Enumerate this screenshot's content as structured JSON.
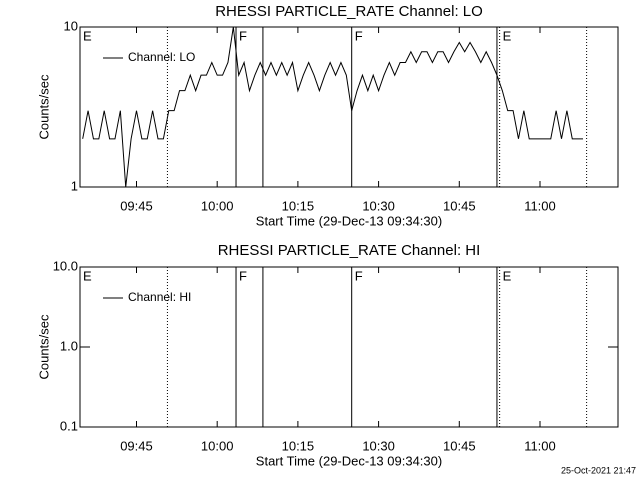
{
  "chart_data": [
    {
      "type": "line",
      "title": "RHESSI PARTICLE_RATE Channel: LO",
      "xlabel": "Start Time (29-Dec-13 09:34:30)",
      "ylabel": "Counts/sec",
      "log_y": true,
      "legend": "upper left",
      "xlim": [
        "09:34:30",
        "11:14:30"
      ],
      "xticks": [
        "09:45",
        "10:00",
        "10:15",
        "10:30",
        "10:45",
        "11:00"
      ],
      "ylim": [
        1,
        10
      ],
      "yticks": [
        1,
        10
      ],
      "x": [
        "09:35",
        "09:36",
        "09:37",
        "09:38",
        "09:39",
        "09:40",
        "09:41",
        "09:42",
        "09:43",
        "09:44",
        "09:45",
        "09:46",
        "09:47",
        "09:48",
        "09:49",
        "09:50",
        "09:51",
        "09:52",
        "09:53",
        "09:54",
        "09:55",
        "09:56",
        "09:57",
        "09:58",
        "09:59",
        "10:00",
        "10:01",
        "10:02",
        "10:03",
        "10:04",
        "10:05",
        "10:06",
        "10:07",
        "10:08",
        "10:09",
        "10:10",
        "10:11",
        "10:12",
        "10:13",
        "10:14",
        "10:15",
        "10:16",
        "10:17",
        "10:18",
        "10:19",
        "10:20",
        "10:21",
        "10:22",
        "10:23",
        "10:24",
        "10:25",
        "10:26",
        "10:27",
        "10:28",
        "10:29",
        "10:30",
        "10:31",
        "10:32",
        "10:33",
        "10:34",
        "10:35",
        "10:36",
        "10:37",
        "10:38",
        "10:39",
        "10:40",
        "10:41",
        "10:42",
        "10:43",
        "10:44",
        "10:45",
        "10:46",
        "10:47",
        "10:48",
        "10:49",
        "10:50",
        "10:51",
        "10:52",
        "10:53",
        "10:54",
        "10:55",
        "10:56",
        "10:57",
        "10:58",
        "10:59",
        "11:00",
        "11:01",
        "11:02",
        "11:03",
        "11:04",
        "11:05",
        "11:06",
        "11:07",
        "11:08"
      ],
      "series": [
        {
          "name": "Channel: LO",
          "color": "#000000",
          "values": [
            2,
            3,
            2,
            2,
            3,
            2,
            2,
            3,
            1,
            2,
            3,
            2,
            2,
            3,
            2,
            2,
            3,
            3,
            4,
            4,
            5,
            4,
            5,
            5,
            6,
            5,
            5,
            6,
            10,
            5,
            6,
            4,
            5,
            6,
            5,
            6,
            5,
            6,
            5,
            6,
            4,
            5,
            6,
            5,
            4,
            5,
            6,
            5,
            6,
            5,
            3,
            4,
            5,
            4,
            5,
            4,
            5,
            6,
            5,
            6,
            6,
            7,
            6,
            7,
            7,
            6,
            7,
            7,
            6,
            7,
            8,
            7,
            8,
            7,
            6,
            7,
            6,
            5,
            4,
            3,
            3,
            2,
            3,
            2,
            2,
            2,
            2,
            2,
            3,
            2,
            3,
            2,
            2,
            2
          ]
        }
      ],
      "vlines": [
        {
          "x": "09:50:45",
          "style": "dotted"
        },
        {
          "x": "10:03:30",
          "style": "solid"
        },
        {
          "x": "10:08:30",
          "style": "solid"
        },
        {
          "x": "10:25:00",
          "style": "solid"
        },
        {
          "x": "10:52:00",
          "style": "solid"
        },
        {
          "x": "10:52:30",
          "style": "dotted"
        },
        {
          "x": "11:08:40",
          "style": "dotted"
        }
      ],
      "flags": [
        {
          "x": "09:34:30",
          "label": "E"
        },
        {
          "x": "10:03:30",
          "label": "F"
        },
        {
          "x": "10:25:00",
          "label": "F"
        },
        {
          "x": "10:52:30",
          "label": "E"
        }
      ]
    },
    {
      "type": "line",
      "title": "RHESSI PARTICLE_RATE Channel: HI",
      "xlabel": "Start Time (29-Dec-13 09:34:30)",
      "ylabel": "Counts/sec",
      "log_y": true,
      "legend": "upper left",
      "xlim": [
        "09:34:30",
        "11:14:30"
      ],
      "xticks": [
        "09:45",
        "10:00",
        "10:15",
        "10:30",
        "10:45",
        "11:00"
      ],
      "ylim": [
        0.1,
        10
      ],
      "yticks": [
        0.1,
        {
          "value": 1,
          "label": "1.0"
        },
        {
          "value": 10,
          "label": "10.0"
        }
      ],
      "x": [],
      "series": [
        {
          "name": "Channel: HI",
          "color": "#000000",
          "values": []
        }
      ],
      "vlines": [
        {
          "x": "09:50:45",
          "style": "dotted"
        },
        {
          "x": "10:03:30",
          "style": "solid"
        },
        {
          "x": "10:08:30",
          "style": "solid"
        },
        {
          "x": "10:25:00",
          "style": "solid"
        },
        {
          "x": "10:52:00",
          "style": "solid"
        },
        {
          "x": "10:52:30",
          "style": "dotted"
        },
        {
          "x": "11:08:40",
          "style": "dotted"
        }
      ],
      "flags": [
        {
          "x": "09:34:30",
          "label": "E"
        },
        {
          "x": "10:03:30",
          "label": "F"
        },
        {
          "x": "10:25:00",
          "label": "F"
        },
        {
          "x": "10:52:30",
          "label": "E"
        }
      ]
    }
  ],
  "timestamp": "25-Oct-2021 21:47"
}
